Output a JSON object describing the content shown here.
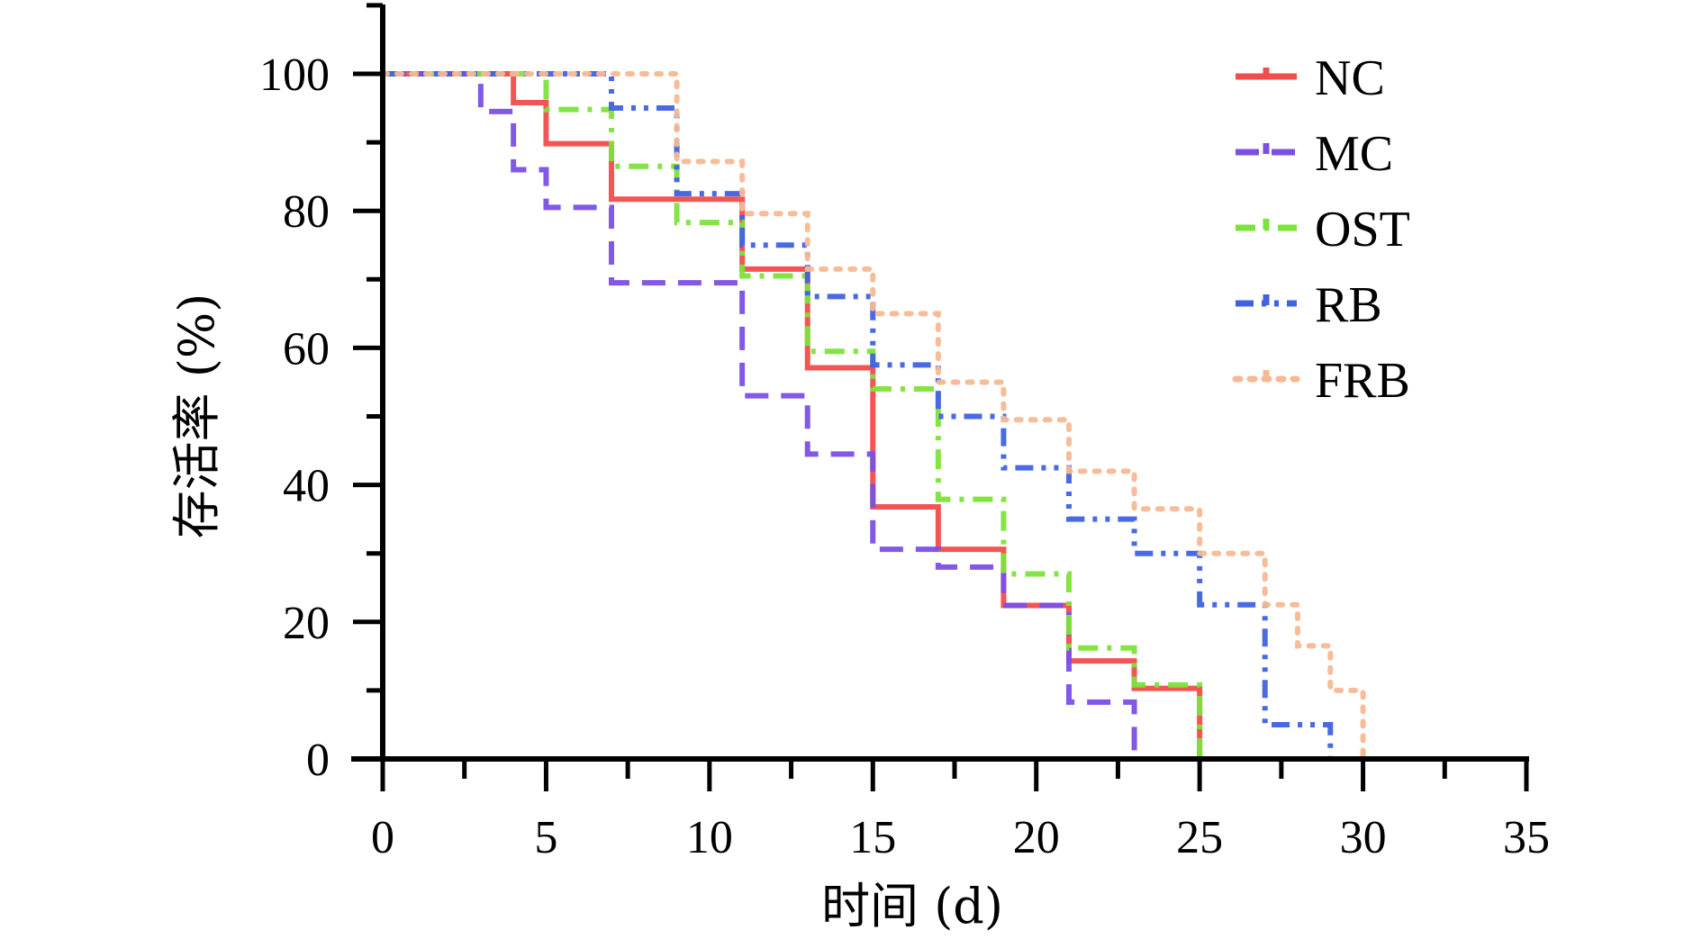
{
  "chart_data": {
    "type": "line",
    "subtype": "step",
    "xlabel": "时间 (d)",
    "ylabel": "存活率 (%)",
    "xlim": [
      0,
      35
    ],
    "ylim": [
      0,
      110
    ],
    "x_ticks": [
      0,
      5,
      10,
      15,
      20,
      25,
      30,
      35
    ],
    "y_ticks": [
      0,
      20,
      40,
      60,
      80,
      100
    ],
    "x_minor_step": 2.5,
    "y_minor_step": 10,
    "grid": false,
    "legend_position": "top-right",
    "series": [
      {
        "name": "NC",
        "color": "#f24c4c",
        "dash": "solid",
        "x": [
          0,
          4,
          5,
          7,
          11,
          13,
          15,
          17,
          19,
          21,
          23,
          25
        ],
        "y": [
          100,
          95.8,
          89.8,
          81.7,
          71.5,
          57.1,
          36.8,
          30.6,
          22.4,
          14.3,
          10.3,
          0
        ]
      },
      {
        "name": "MC",
        "color": "#7b4fe6",
        "dash": "dash",
        "x": [
          0,
          3,
          4,
          5,
          7,
          11,
          13,
          15,
          17,
          19,
          21,
          23
        ],
        "y": [
          100,
          94.5,
          86,
          80.5,
          69.5,
          53,
          44.5,
          30.6,
          28,
          22.4,
          8.3,
          0
        ]
      },
      {
        "name": "OST",
        "color": "#7ce33a",
        "dash": "dashdot",
        "x": [
          0,
          5,
          7,
          9,
          11,
          13,
          15,
          17,
          19,
          21,
          23,
          25
        ],
        "y": [
          100,
          94.8,
          86.5,
          78.3,
          70.5,
          59.5,
          54,
          37.9,
          27,
          16.2,
          10.8,
          0
        ]
      },
      {
        "name": "RB",
        "color": "#3f62e3",
        "dash": "dashdotdot",
        "x": [
          0,
          7,
          9,
          11,
          13,
          15,
          17,
          19,
          21,
          23,
          25,
          27,
          29
        ],
        "y": [
          100,
          95,
          82.5,
          75,
          67.5,
          57.5,
          50,
          42.5,
          35,
          30,
          22.5,
          5,
          0
        ]
      },
      {
        "name": "FRB",
        "color": "#f7b992",
        "dash": "dot",
        "x": [
          0,
          9,
          11,
          13,
          15,
          17,
          19,
          21,
          23,
          25,
          27,
          28,
          29,
          30
        ],
        "y": [
          100,
          87.2,
          79.6,
          71.5,
          65,
          55,
          49.5,
          42,
          36.5,
          30,
          22.5,
          16.5,
          10,
          0
        ]
      }
    ]
  }
}
